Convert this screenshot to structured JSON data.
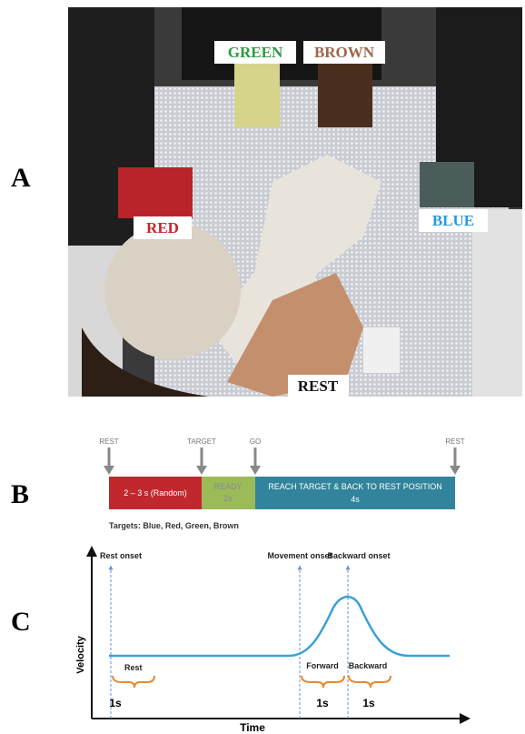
{
  "panel_a": {
    "label": "A",
    "targets": [
      "GREEN",
      "BROWN",
      "RED",
      "BLUE"
    ],
    "rest": "REST"
  },
  "panel_b": {
    "label": "B",
    "events": [
      "REST",
      "TARGET",
      "GO",
      "REST"
    ],
    "segments": [
      {
        "lines": [
          "2 – 3 s (Random)"
        ]
      },
      {
        "lines": [
          "READY",
          "2s"
        ]
      },
      {
        "lines": [
          "REACH TARGET & BACK TO REST POSITION",
          "4s"
        ]
      }
    ],
    "note": "Targets: Blue, Red, Green, Brown"
  },
  "panel_c": {
    "label": "C",
    "y_label": "Velocity",
    "x_label": "Time",
    "markers": [
      "Rest onset",
      "Movement onset",
      "Backward onset"
    ],
    "phases": [
      "Rest",
      "Forward",
      "Backward"
    ],
    "durations": [
      "1s",
      "1s",
      "1s"
    ]
  }
}
